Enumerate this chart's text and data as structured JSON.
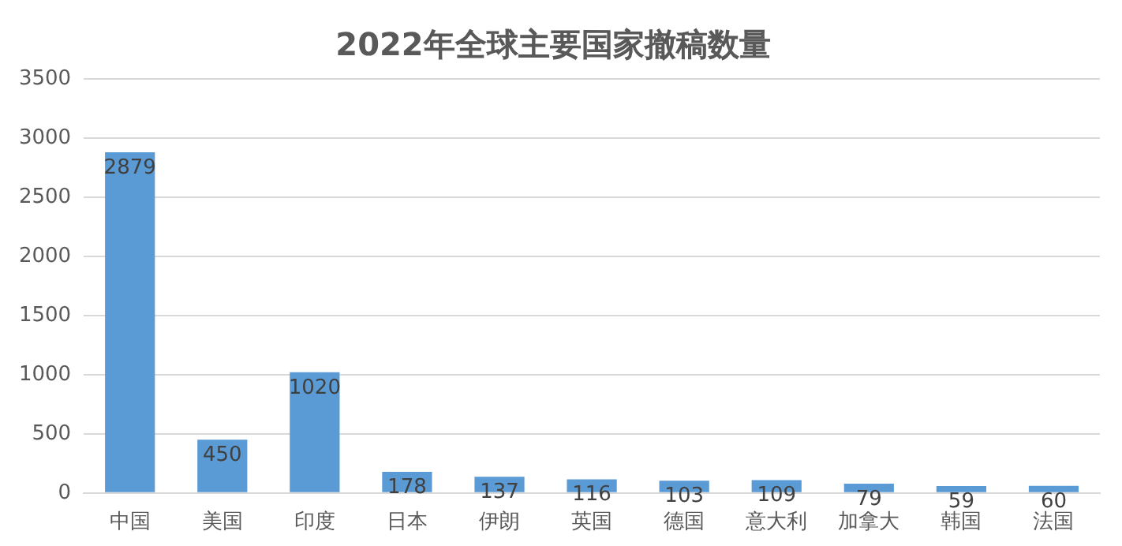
{
  "chart_data": {
    "type": "bar",
    "title": "2022年全球主要国家撤稿数量",
    "categories": [
      "中国",
      "美国",
      "印度",
      "日本",
      "伊朗",
      "英国",
      "德国",
      "意大利",
      "加拿大",
      "韩国",
      "法国"
    ],
    "values": [
      2879,
      450,
      1020,
      178,
      137,
      116,
      103,
      109,
      79,
      59,
      60
    ],
    "color": "#5b9bd5",
    "ylim": [
      0,
      3500
    ],
    "yticks": [
      0,
      500,
      1000,
      1500,
      2000,
      2500,
      3000,
      3500
    ],
    "grid": "y",
    "data_labels": true
  }
}
